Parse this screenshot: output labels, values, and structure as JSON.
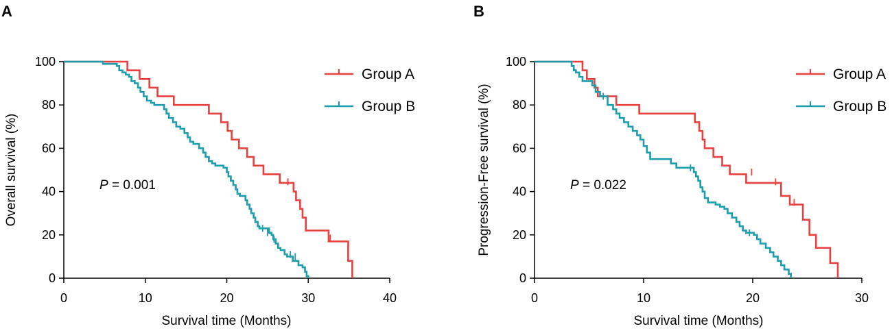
{
  "chart_data": [
    {
      "type": "line",
      "subtype": "kaplan-meier",
      "panel_label": "A",
      "xlabel": "Survival time (Months)",
      "ylabel": "Overall survival (%)",
      "xlim": [
        0,
        40
      ],
      "ylim": [
        0,
        100
      ],
      "xticks": [
        0,
        10,
        20,
        30,
        40
      ],
      "yticks": [
        0,
        20,
        40,
        60,
        80,
        100
      ],
      "p_prefix": "P",
      "p_value": " = 0.001",
      "legend_position": "top-right",
      "series": [
        {
          "name": "Group A",
          "color": "#e8403f",
          "steps": [
            [
              0,
              100
            ],
            [
              7.8,
              96
            ],
            [
              9.3,
              92
            ],
            [
              10.5,
              88
            ],
            [
              11.5,
              84
            ],
            [
              12.3,
              84
            ],
            [
              13.5,
              80
            ],
            [
              17.8,
              76
            ],
            [
              19.3,
              72
            ],
            [
              20.1,
              68
            ],
            [
              20.6,
              64
            ],
            [
              21.5,
              60
            ],
            [
              22.5,
              56
            ],
            [
              23.3,
              52
            ],
            [
              24.5,
              48
            ],
            [
              26.5,
              44
            ],
            [
              28.2,
              40
            ],
            [
              28.5,
              36
            ],
            [
              29.0,
              32
            ],
            [
              29.3,
              28
            ],
            [
              29.7,
              22
            ],
            [
              32.5,
              17
            ],
            [
              34.9,
              8
            ],
            [
              35.4,
              0
            ]
          ],
          "censors": [
            [
              24.5,
              50
            ],
            [
              27.5,
              44.5
            ],
            [
              32.7,
              18.5
            ]
          ]
        },
        {
          "name": "Group B",
          "color": "#1b9dae",
          "steps": [
            [
              0,
              100
            ],
            [
              4.8,
              99
            ],
            [
              6.5,
              98
            ],
            [
              6.8,
              96
            ],
            [
              7.2,
              95
            ],
            [
              7.6,
              94
            ],
            [
              8.0,
              93
            ],
            [
              8.3,
              91
            ],
            [
              8.7,
              90
            ],
            [
              9.1,
              88
            ],
            [
              9.4,
              86
            ],
            [
              9.8,
              84
            ],
            [
              10.2,
              82
            ],
            [
              10.7,
              81
            ],
            [
              11.1,
              80
            ],
            [
              12.3,
              78
            ],
            [
              12.6,
              76
            ],
            [
              12.9,
              74
            ],
            [
              13.4,
              72
            ],
            [
              13.8,
              70
            ],
            [
              14.3,
              69
            ],
            [
              14.8,
              67
            ],
            [
              15.2,
              65
            ],
            [
              15.5,
              63
            ],
            [
              15.9,
              62
            ],
            [
              16.6,
              60
            ],
            [
              17.1,
              58
            ],
            [
              17.4,
              56
            ],
            [
              17.8,
              54
            ],
            [
              18.2,
              53
            ],
            [
              18.6,
              52
            ],
            [
              19.6,
              51
            ],
            [
              20.0,
              49
            ],
            [
              20.2,
              47
            ],
            [
              20.5,
              45
            ],
            [
              20.8,
              43
            ],
            [
              21.1,
              41
            ],
            [
              21.3,
              39
            ],
            [
              21.6,
              38
            ],
            [
              22.3,
              36
            ],
            [
              22.5,
              34
            ],
            [
              22.8,
              32
            ],
            [
              23.0,
              30
            ],
            [
              23.3,
              28
            ],
            [
              23.5,
              26
            ],
            [
              23.8,
              24
            ],
            [
              24.0,
              23
            ],
            [
              25.2,
              21
            ],
            [
              25.5,
              20
            ],
            [
              25.7,
              18
            ],
            [
              26.0,
              16
            ],
            [
              26.3,
              14
            ],
            [
              26.6,
              13
            ],
            [
              27.1,
              11
            ],
            [
              27.4,
              10
            ],
            [
              28.1,
              8
            ],
            [
              28.8,
              6
            ],
            [
              29.3,
              5
            ],
            [
              29.6,
              3
            ],
            [
              29.8,
              1
            ],
            [
              30.0,
              0
            ]
          ],
          "censors": [
            [
              24.4,
              23
            ],
            [
              25.0,
              21
            ],
            [
              25.8,
              18
            ],
            [
              27.8,
              11
            ],
            [
              28.4,
              10
            ]
          ]
        }
      ]
    },
    {
      "type": "line",
      "subtype": "kaplan-meier",
      "panel_label": "B",
      "xlabel": "Survival time (Months)",
      "ylabel": "Progression-Free survival (%)",
      "xlim": [
        0,
        30
      ],
      "ylim": [
        0,
        100
      ],
      "xticks": [
        0,
        10,
        20,
        30
      ],
      "yticks": [
        0,
        20,
        40,
        60,
        80,
        100
      ],
      "p_prefix": "P",
      "p_value": " = 0.022",
      "legend_position": "top-right",
      "series": [
        {
          "name": "Group A",
          "color": "#e8403f",
          "steps": [
            [
              0,
              100
            ],
            [
              4.4,
              96
            ],
            [
              4.8,
              92
            ],
            [
              5.5,
              88
            ],
            [
              5.8,
              84
            ],
            [
              7.5,
              80
            ],
            [
              9.6,
              76
            ],
            [
              14.7,
              72
            ],
            [
              15.1,
              68
            ],
            [
              15.4,
              64
            ],
            [
              15.6,
              60
            ],
            [
              16.4,
              56
            ],
            [
              17.2,
              52
            ],
            [
              17.9,
              48
            ],
            [
              19.4,
              44
            ],
            [
              22.6,
              38
            ],
            [
              23.4,
              34
            ],
            [
              24.6,
              27
            ],
            [
              25.2,
              20
            ],
            [
              25.8,
              14
            ],
            [
              27.1,
              7
            ],
            [
              27.8,
              0
            ]
          ],
          "censors": [
            [
              19.9,
              49
            ],
            [
              22.1,
              44.5
            ],
            [
              23.8,
              35
            ]
          ]
        },
        {
          "name": "Group B",
          "color": "#1b9dae",
          "steps": [
            [
              0,
              100
            ],
            [
              3.4,
              98
            ],
            [
              3.6,
              96
            ],
            [
              3.8,
              95
            ],
            [
              4.1,
              93
            ],
            [
              4.4,
              91
            ],
            [
              5.3,
              89
            ],
            [
              5.6,
              86
            ],
            [
              6.0,
              84
            ],
            [
              6.7,
              80
            ],
            [
              7.2,
              78
            ],
            [
              7.5,
              76
            ],
            [
              7.8,
              74
            ],
            [
              8.2,
              72
            ],
            [
              8.6,
              70
            ],
            [
              9.0,
              68
            ],
            [
              9.4,
              66
            ],
            [
              9.7,
              64
            ],
            [
              10.0,
              61
            ],
            [
              10.3,
              58
            ],
            [
              10.6,
              55
            ],
            [
              12.5,
              53
            ],
            [
              13.0,
              51
            ],
            [
              14.6,
              49
            ],
            [
              14.8,
              47
            ],
            [
              15.0,
              45
            ],
            [
              15.2,
              42
            ],
            [
              15.4,
              40
            ],
            [
              15.6,
              37
            ],
            [
              15.9,
              35
            ],
            [
              16.6,
              34
            ],
            [
              17.0,
              33
            ],
            [
              17.4,
              32
            ],
            [
              17.7,
              30
            ],
            [
              18.1,
              28
            ],
            [
              18.5,
              26
            ],
            [
              18.8,
              24
            ],
            [
              19.1,
              22
            ],
            [
              19.4,
              21
            ],
            [
              20.1,
              20
            ],
            [
              20.4,
              18
            ],
            [
              20.7,
              16
            ],
            [
              21.2,
              14
            ],
            [
              21.6,
              12
            ],
            [
              21.9,
              10
            ],
            [
              22.3,
              8
            ],
            [
              22.6,
              6
            ],
            [
              22.9,
              4
            ],
            [
              23.3,
              2
            ],
            [
              23.5,
              0
            ]
          ],
          "censors": [
            [
              6.3,
              84
            ],
            [
              14.3,
              51
            ],
            [
              19.7,
              21
            ]
          ]
        }
      ]
    }
  ]
}
